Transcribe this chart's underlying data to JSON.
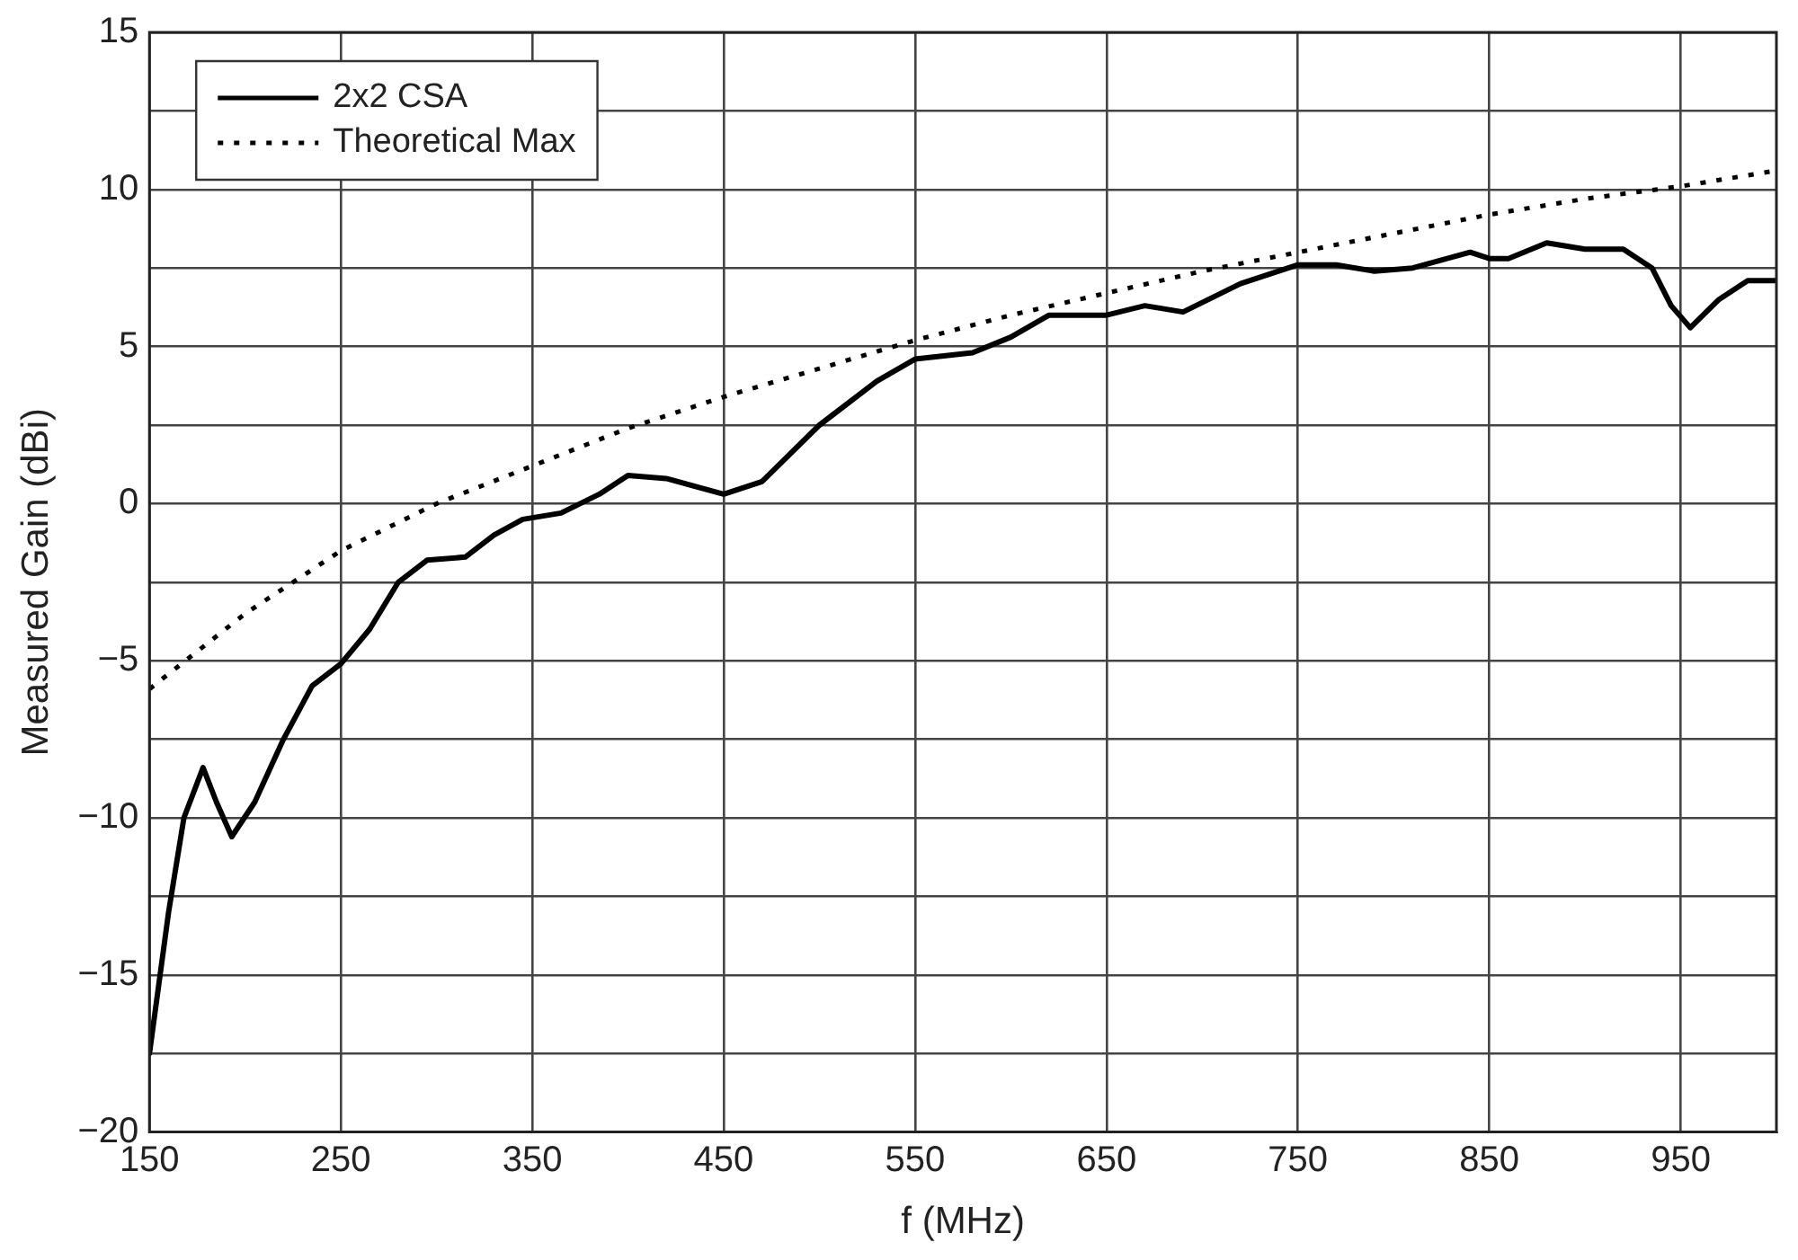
{
  "chart_data": {
    "type": "line",
    "xlabel": "f (MHz)",
    "ylabel": "Measured Gain (dBi)",
    "xlim": [
      150,
      1000
    ],
    "xticks": [
      150,
      250,
      350,
      450,
      550,
      650,
      750,
      850,
      950
    ],
    "ylim": [
      -20,
      15
    ],
    "yticks": [
      {
        "value": -20,
        "label": "−20"
      },
      {
        "value": -17.5,
        "label": null
      },
      {
        "value": -15,
        "label": "−15"
      },
      {
        "value": -12.5,
        "label": null
      },
      {
        "value": -10,
        "label": "−10"
      },
      {
        "value": -7.5,
        "label": null
      },
      {
        "value": -5,
        "label": "−5"
      },
      {
        "value": -2.5,
        "label": null
      },
      0,
      {
        "value": 2.5,
        "label": null
      },
      5,
      {
        "value": 7.5,
        "label": null
      },
      10,
      {
        "value": 12.5,
        "label": null
      },
      15
    ],
    "grid": true,
    "legend": "top left",
    "marker": "none",
    "series": [
      {
        "name": "2x2 CSA",
        "color": "#000000",
        "line_style": "solid",
        "x": [
          150,
          160,
          168,
          178,
          185,
          193,
          205,
          220,
          235,
          250,
          265,
          280,
          295,
          315,
          330,
          345,
          365,
          385,
          400,
          420,
          450,
          470,
          500,
          530,
          550,
          580,
          600,
          620,
          650,
          670,
          690,
          720,
          750,
          770,
          790,
          810,
          840,
          850,
          860,
          880,
          900,
          920,
          935,
          945,
          955,
          970,
          985,
          1000
        ],
        "values": [
          -17.5,
          -13,
          -10,
          -8.4,
          -9.5,
          -10.6,
          -9.5,
          -7.5,
          -5.8,
          -5.1,
          -4,
          -2.5,
          -1.8,
          -1.7,
          -1.0,
          -0.5,
          -0.3,
          0.3,
          0.9,
          0.8,
          0.3,
          0.7,
          2.5,
          3.9,
          4.6,
          4.8,
          5.3,
          6.0,
          6.0,
          6.3,
          6.1,
          7.0,
          7.6,
          7.6,
          7.4,
          7.5,
          8.0,
          7.8,
          7.8,
          8.3,
          8.1,
          8.1,
          7.5,
          6.3,
          5.6,
          6.5,
          7.1,
          7.1
        ]
      },
      {
        "name": "Theoretical Max",
        "color": "#000000",
        "line_style": "dotted",
        "x": [
          150,
          200,
          250,
          300,
          350,
          400,
          450,
          500,
          550,
          600,
          650,
          700,
          750,
          800,
          850,
          900,
          950,
          1000
        ],
        "values": [
          -5.9,
          -3.5,
          -1.5,
          0,
          1.2,
          2.4,
          3.4,
          4.3,
          5.2,
          6.0,
          6.7,
          7.4,
          8.0,
          8.6,
          9.2,
          9.7,
          10.1,
          10.6
        ]
      }
    ]
  }
}
